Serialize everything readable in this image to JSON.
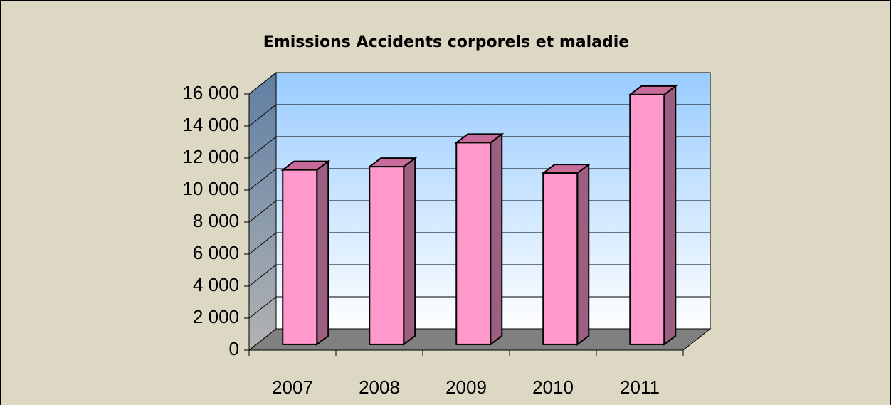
{
  "chart_data": {
    "type": "bar3d",
    "title": "Emissions Accidents corporels et maladie",
    "categories": [
      "2007",
      "2008",
      "2009",
      "2010",
      "2011"
    ],
    "values": [
      10900,
      11100,
      12600,
      10700,
      15600
    ],
    "color": "#ff99cc",
    "ylim": [
      0,
      16000
    ],
    "yticks": [
      0,
      {
        "value": 2000,
        "label": "2 000"
      },
      {
        "value": 4000,
        "label": "4 000"
      },
      {
        "value": 6000,
        "label": "6 000"
      },
      {
        "value": 8000,
        "label": "8 000"
      },
      {
        "value": 10000,
        "label": "10 000"
      },
      {
        "value": 12000,
        "label": "12 000"
      },
      {
        "value": 14000,
        "label": "14 000"
      },
      {
        "value": 16000,
        "label": "16 000"
      }
    ],
    "grid": true
  }
}
